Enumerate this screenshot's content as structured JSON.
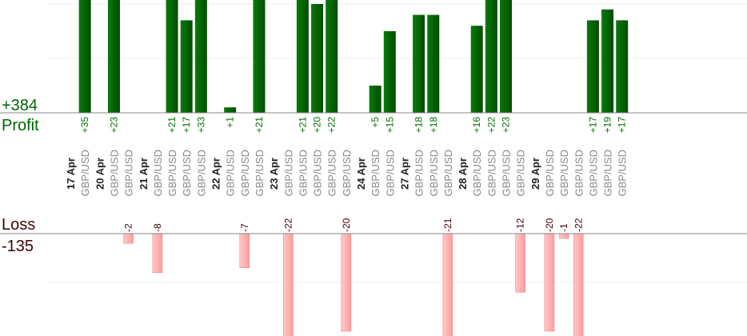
{
  "chart_data": {
    "type": "bar",
    "profit_label": "Profit",
    "loss_label": "Loss",
    "profit_total": "+384",
    "loss_total": "-135",
    "colors": {
      "profit": "#006400",
      "loss": "#ffaaaa",
      "profit_text": "#007000",
      "loss_text": "#400000",
      "symbol_text": "#888888"
    },
    "grid": true,
    "days": [
      {
        "date": "17 Apr",
        "trades": [
          {
            "symbol": "GBP/USD",
            "value": 35
          }
        ]
      },
      {
        "date": "20 Apr",
        "trades": [
          {
            "symbol": "GBP/USD",
            "value": 23
          },
          {
            "symbol": "GBP/USD",
            "value": -2
          }
        ]
      },
      {
        "date": "21 Apr",
        "trades": [
          {
            "symbol": "GBP/USD",
            "value": -8
          },
          {
            "symbol": "GBP/USD",
            "value": 21
          },
          {
            "symbol": "GBP/USD",
            "value": 17
          },
          {
            "symbol": "GBP/USD",
            "value": 33
          }
        ]
      },
      {
        "date": "22 Apr",
        "trades": [
          {
            "symbol": "GBP/USD",
            "value": 1
          },
          {
            "symbol": "GBP/USD",
            "value": -7
          },
          {
            "symbol": "GBP/USD",
            "value": 21
          }
        ]
      },
      {
        "date": "23 Apr",
        "trades": [
          {
            "symbol": "GBP/USD",
            "value": -22
          },
          {
            "symbol": "GBP/USD",
            "value": 21
          },
          {
            "symbol": "GBP/USD",
            "value": 20
          },
          {
            "symbol": "GBP/USD",
            "value": 22
          },
          {
            "symbol": "GBP/USD",
            "value": -20
          }
        ]
      },
      {
        "date": "24 Apr",
        "trades": [
          {
            "symbol": "GBP/USD",
            "value": 5
          },
          {
            "symbol": "GBP/USD",
            "value": 15
          }
        ]
      },
      {
        "date": "27 Apr",
        "trades": [
          {
            "symbol": "GBP/USD",
            "value": 18
          },
          {
            "symbol": "GBP/USD",
            "value": 18
          },
          {
            "symbol": "GBP/USD",
            "value": -21
          }
        ]
      },
      {
        "date": "28 Apr",
        "trades": [
          {
            "symbol": "GBP/USD",
            "value": 16
          },
          {
            "symbol": "GBP/USD",
            "value": 22
          },
          {
            "symbol": "GBP/USD",
            "value": 23
          },
          {
            "symbol": "GBP/USD",
            "value": -12
          }
        ]
      },
      {
        "date": "29 Apr",
        "trades": [
          {
            "symbol": "GBP/USD",
            "value": -20
          },
          {
            "symbol": "GBP/USD",
            "value": -1
          },
          {
            "symbol": "GBP/USD",
            "value": -22
          },
          {
            "symbol": "GBP/USD",
            "value": 17
          },
          {
            "symbol": "GBP/USD",
            "value": 19
          },
          {
            "symbol": "GBP/USD",
            "value": 17
          }
        ]
      }
    ]
  }
}
